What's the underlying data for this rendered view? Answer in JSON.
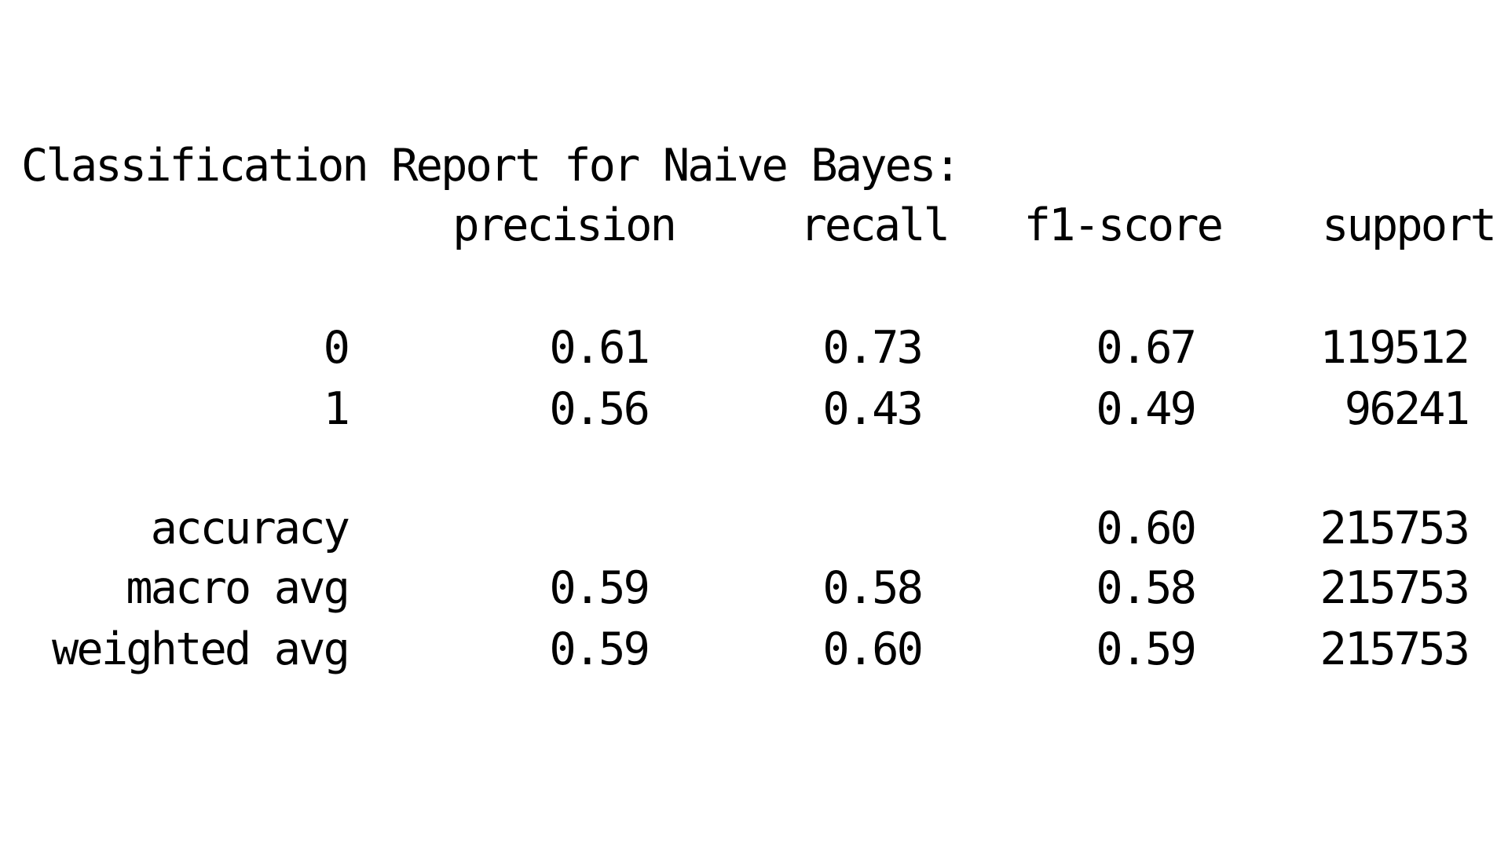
{
  "report": {
    "title": "Classification Report for Naive Bayes:",
    "headers": {
      "precision": "precision",
      "recall": "recall",
      "f1": "f1-score",
      "support": "support"
    },
    "class_rows": [
      {
        "label": "0",
        "precision": "0.61",
        "recall": "0.73",
        "f1": "0.67",
        "support": "119512"
      },
      {
        "label": "1",
        "precision": "0.56",
        "recall": "0.43",
        "f1": "0.49",
        "support": "96241"
      }
    ],
    "accuracy_row": {
      "label": "accuracy",
      "precision": "",
      "recall": "",
      "f1": "0.60",
      "support": "215753"
    },
    "avg_rows": [
      {
        "label": "macro avg",
        "precision": "0.59",
        "recall": "0.58",
        "f1": "0.58",
        "support": "215753"
      },
      {
        "label": "weighted avg",
        "precision": "0.59",
        "recall": "0.60",
        "f1": "0.59",
        "support": "215753"
      }
    ]
  }
}
